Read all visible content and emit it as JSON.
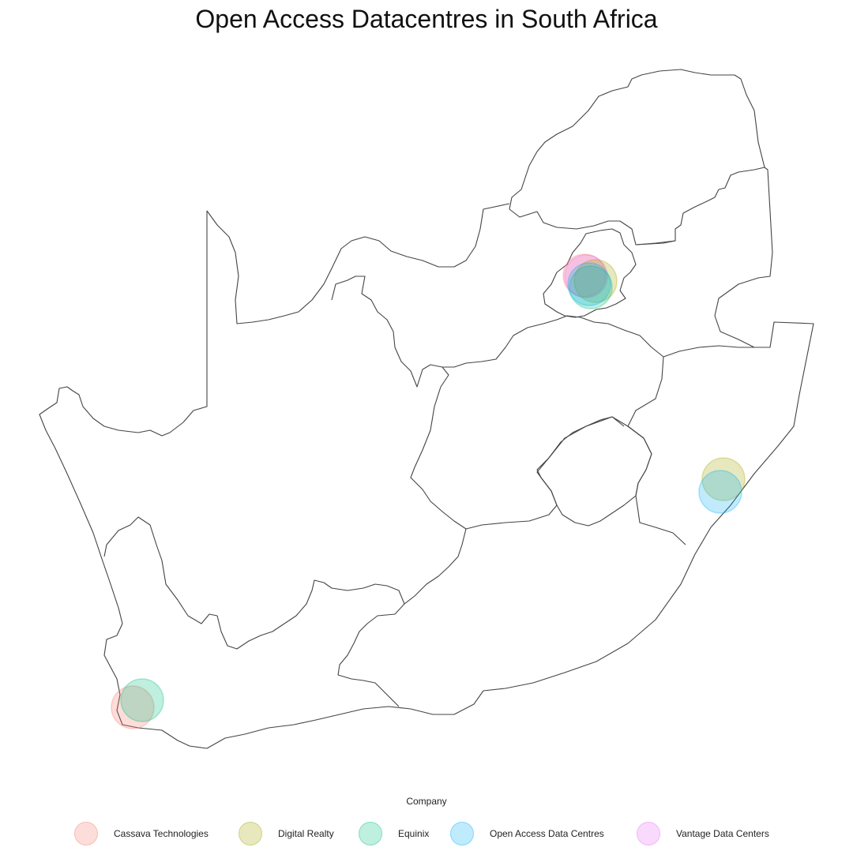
{
  "title": "Open Access Datacentres in South Africa",
  "legend": {
    "title": "Company",
    "items": [
      {
        "label": "Cassava Technologies",
        "color": "#F8766D"
      },
      {
        "label": "Digital Realty",
        "color": "#A3A500"
      },
      {
        "label": "Equinix",
        "color": "#00BF7D"
      },
      {
        "label": "Open Access Data Centres",
        "color": "#00B0F6"
      },
      {
        "label": "Vantage Data Centers",
        "color": "#E76BF3"
      }
    ]
  },
  "chart_data": {
    "type": "map",
    "region": "South Africa",
    "marker_opacity": 0.25,
    "points": [
      {
        "company": "Cassava Technologies",
        "location": "Johannesburg"
      },
      {
        "company": "Cassava Technologies",
        "location": "Cape Town"
      },
      {
        "company": "Vantage Data Centers",
        "location": "Johannesburg"
      },
      {
        "company": "Digital Realty",
        "location": "Johannesburg"
      },
      {
        "company": "Digital Realty",
        "location": "Durban"
      },
      {
        "company": "Equinix",
        "location": "Johannesburg"
      },
      {
        "company": "Equinix",
        "location": "Cape Town"
      },
      {
        "company": "Open Access Data Centres",
        "location": "Johannesburg"
      },
      {
        "company": "Open Access Data Centres",
        "location": "Durban"
      }
    ]
  }
}
